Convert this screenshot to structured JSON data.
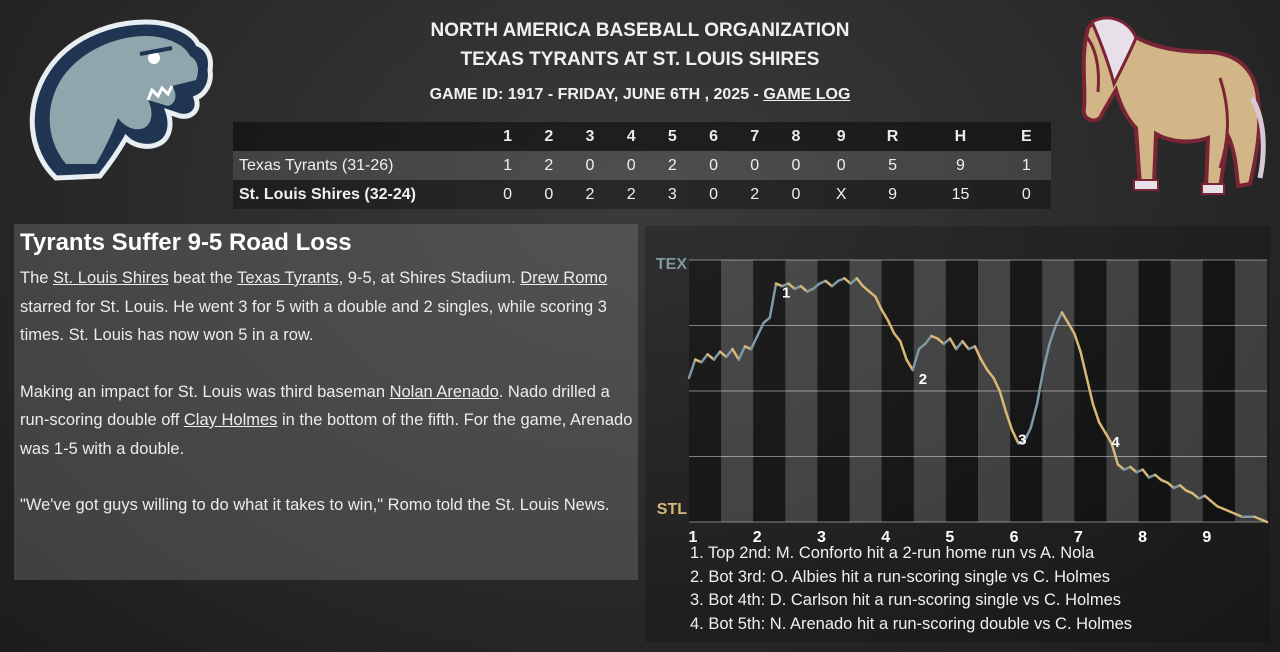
{
  "header": {
    "organization": "NORTH AMERICA BASEBALL ORGANIZATION",
    "matchup": "TEXAS TYRANTS AT ST. LOUIS SHIRES",
    "game_info": "GAME ID: 1917 - FRIDAY, JUNE 6TH , 2025 - ",
    "game_log_link": "GAME LOG"
  },
  "colors": {
    "away": "#7f99a3",
    "home": "#d9b877",
    "background": "#2a2a2a"
  },
  "logos": {
    "away": "t-rex-logo-icon",
    "home": "draft-horse-logo-icon"
  },
  "linescore": {
    "columns": [
      "1",
      "2",
      "3",
      "4",
      "5",
      "6",
      "7",
      "8",
      "9",
      "R",
      "H",
      "E"
    ],
    "rows": [
      {
        "team": "Texas Tyrants (31-26)",
        "scores": [
          "1",
          "2",
          "0",
          "0",
          "2",
          "0",
          "0",
          "0",
          "0",
          "5",
          "9",
          "1"
        ]
      },
      {
        "team": "St. Louis Shires (32-24)",
        "scores": [
          "0",
          "0",
          "2",
          "2",
          "3",
          "0",
          "2",
          "0",
          "X",
          "9",
          "15",
          "0"
        ]
      }
    ]
  },
  "story": {
    "headline": "Tyrants Suffer 9-5 Road Loss",
    "p1": {
      "a": "The ",
      "l1": "St. Louis Shires",
      "b": " beat the ",
      "l2": "Texas Tyrants",
      "c": ", 9-5, at Shires Stadium. ",
      "l3": "Drew Romo",
      "d": " starred for St. Louis. He went 3 for 5 with a double and 2 singles, while scoring 3 times. St. Louis has now won 5 in a row."
    },
    "p2": {
      "a": "Making an impact for St. Louis was third baseman ",
      "l1": "Nolan Arenado",
      "b": ". Nado drilled a run-scoring double off ",
      "l2": "Clay Holmes",
      "c": " in the bottom of the fifth. For the game, Arenado was 1-5 with a double."
    },
    "p3": "\"We've got guys willing to do what it takes to win,\" Romo told the St. Louis News."
  },
  "chart_data": {
    "type": "line",
    "title": "",
    "y_top_label": "TEX",
    "y_bottom_label": "STL",
    "x_labels": [
      "1",
      "2",
      "3",
      "4",
      "5",
      "6",
      "7",
      "8",
      "9"
    ],
    "ylim": [
      0,
      1
    ],
    "series": [
      {
        "values": [
          0.55,
          0.62,
          0.61,
          0.64,
          0.62,
          0.65,
          0.63,
          0.66,
          0.62,
          0.67,
          0.66,
          0.71,
          0.76,
          0.78,
          0.91,
          0.9,
          0.91,
          0.89,
          0.9,
          0.88,
          0.89,
          0.91,
          0.92,
          0.9,
          0.92,
          0.93,
          0.91,
          0.93,
          0.9,
          0.88,
          0.86,
          0.81,
          0.77,
          0.72,
          0.69,
          0.62,
          0.58,
          0.66,
          0.68,
          0.71,
          0.7,
          0.68,
          0.7,
          0.66,
          0.69,
          0.66,
          0.67,
          0.62,
          0.58,
          0.55,
          0.5,
          0.42,
          0.35,
          0.3,
          0.31,
          0.36,
          0.45,
          0.58,
          0.68,
          0.75,
          0.8,
          0.76,
          0.72,
          0.65,
          0.55,
          0.45,
          0.38,
          0.34,
          0.3,
          0.22,
          0.2,
          0.21,
          0.19,
          0.2,
          0.17,
          0.18,
          0.16,
          0.15,
          0.13,
          0.14,
          0.12,
          0.11,
          0.09,
          0.1,
          0.08,
          0.06,
          0.05,
          0.04,
          0.03,
          0.02,
          0.02,
          0.02,
          0.01,
          0.0
        ],
        "events_markers": [
          {
            "label": "1",
            "index": 14
          },
          {
            "label": "2",
            "index": 36
          },
          {
            "label": "3",
            "index": 52
          },
          {
            "label": "4",
            "index": 67
          }
        ]
      }
    ]
  },
  "events": [
    "1. Top 2nd: M. Conforto hit a 2-run home run vs A. Nola",
    "2. Bot 3rd: O. Albies hit a run-scoring single vs C. Holmes",
    "3. Bot 4th: D. Carlson hit a run-scoring single vs C. Holmes",
    "4. Bot 5th: N. Arenado hit a run-scoring double vs C. Holmes"
  ]
}
